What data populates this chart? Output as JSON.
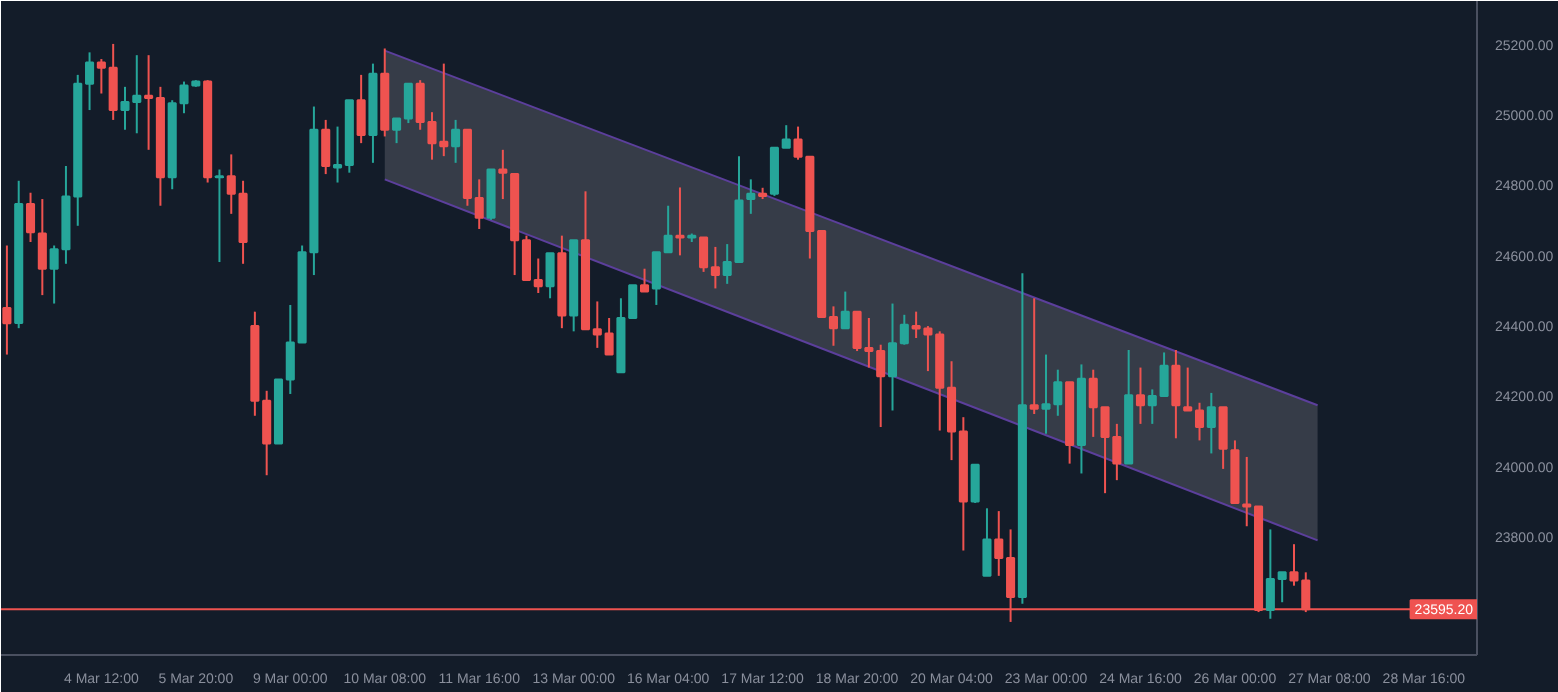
{
  "chart_data": {
    "type": "candlestick",
    "categories": [
      null,
      null,
      null,
      null,
      null,
      null,
      null,
      null,
      "4 Mar 12:00",
      null,
      null,
      null,
      null,
      null,
      null,
      null,
      "5 Mar 20:00",
      null,
      null,
      null,
      null,
      null,
      null,
      null,
      "9 Mar 00:00",
      null,
      null,
      null,
      null,
      null,
      null,
      null,
      "10 Mar 08:00",
      null,
      null,
      null,
      null,
      null,
      null,
      null,
      "11 Mar 16:00",
      null,
      null,
      null,
      null,
      null,
      null,
      null,
      "13 Mar 00:00",
      null,
      null,
      null,
      null,
      null,
      null,
      null,
      "16 Mar 04:00",
      null,
      null,
      null,
      null,
      null,
      null,
      null,
      "17 Mar 12:00",
      null,
      null,
      null,
      null,
      null,
      null,
      null,
      "18 Mar 20:00",
      null,
      null,
      null,
      null,
      null,
      null,
      null,
      "20 Mar 04:00",
      null,
      null,
      null,
      null,
      null,
      null,
      null,
      "23 Mar 00:00",
      null,
      null,
      null,
      null,
      null,
      null,
      null,
      "24 Mar 16:00",
      null,
      null,
      null,
      null,
      null,
      null,
      null,
      "26 Mar 00:00",
      null,
      null,
      null,
      null,
      null,
      null,
      null,
      "27 Mar 08:00",
      null,
      null,
      null,
      null,
      null,
      null,
      null,
      "28 Mar 16:00",
      null,
      null,
      null,
      null
    ],
    "ohlc": [
      [
        24451,
        24629,
        24319,
        24408
      ],
      [
        24409,
        24813,
        24394,
        24747
      ],
      [
        24747,
        24779,
        24639,
        24667
      ],
      [
        24663,
        24761,
        24488,
        24563
      ],
      [
        24563,
        24629,
        24464,
        24618
      ],
      [
        24618,
        24855,
        24577,
        24768
      ],
      [
        24768,
        25114,
        24685,
        25089
      ],
      [
        25089,
        25178,
        25014,
        25149
      ],
      [
        25149,
        25159,
        25061,
        25134
      ],
      [
        25134,
        25202,
        24986,
        25014
      ],
      [
        25014,
        25080,
        24958,
        25037
      ],
      [
        25037,
        25170,
        24948,
        25055
      ],
      [
        25055,
        25170,
        24901,
        25048
      ],
      [
        25048,
        25080,
        24742,
        24823
      ],
      [
        24823,
        25042,
        24789,
        25033
      ],
      [
        25033,
        25095,
        25005,
        25084
      ],
      [
        25084,
        25099,
        25080,
        25095
      ],
      [
        25095,
        25099,
        24808,
        24823
      ],
      [
        24823,
        24845,
        24582,
        24826
      ],
      [
        24826,
        24888,
        24719,
        24776
      ],
      [
        24776,
        24813,
        24577,
        24639
      ],
      [
        24400,
        24441,
        24145,
        24188
      ],
      [
        24188,
        24216,
        23976,
        24066
      ],
      [
        24066,
        24248,
        24066,
        24248
      ],
      [
        24248,
        24460,
        24207,
        24353
      ],
      [
        24353,
        24629,
        24353,
        24610
      ],
      [
        24610,
        25024,
        24545,
        24958
      ],
      [
        24958,
        24986,
        24832,
        24855
      ],
      [
        24851,
        24967,
        24808,
        24858
      ],
      [
        24858,
        25042,
        24836,
        25042
      ],
      [
        25042,
        25114,
        24920,
        24943
      ],
      [
        24943,
        25146,
        24864,
        25117
      ],
      [
        25117,
        25189,
        24939,
        24958
      ],
      [
        24958,
        24990,
        24920,
        24990
      ],
      [
        24990,
        25089,
        24977,
        25089
      ],
      [
        25089,
        25099,
        24958,
        24980
      ],
      [
        24980,
        25008,
        24873,
        24920
      ],
      [
        24924,
        25146,
        24883,
        24911
      ],
      [
        24911,
        24986,
        24864,
        24958
      ],
      [
        24958,
        24958,
        24742,
        24764
      ],
      [
        24764,
        24817,
        24676,
        24708
      ],
      [
        24708,
        24845,
        24702,
        24845
      ],
      [
        24845,
        24901,
        24761,
        24836
      ],
      [
        24832,
        24832,
        24545,
        24644
      ],
      [
        24644,
        24657,
        24531,
        24531
      ],
      [
        24531,
        24592,
        24494,
        24513
      ],
      [
        24513,
        24607,
        24479,
        24607
      ],
      [
        24607,
        24657,
        24394,
        24430
      ],
      [
        24430,
        24644,
        24385,
        24644
      ],
      [
        24644,
        24783,
        24391,
        24391
      ],
      [
        24391,
        24470,
        24338,
        24376
      ],
      [
        24379,
        24423,
        24319,
        24319
      ],
      [
        24269,
        24479,
        24269,
        24423
      ],
      [
        24423,
        24516,
        24423,
        24516
      ],
      [
        24516,
        24563,
        24498,
        24498
      ],
      [
        24507,
        24610,
        24460,
        24610
      ],
      [
        24610,
        24742,
        24610,
        24657
      ],
      [
        24657,
        24794,
        24601,
        24652
      ],
      [
        24652,
        24663,
        24639,
        24657
      ],
      [
        24652,
        24652,
        24554,
        24567
      ],
      [
        24567,
        24625,
        24507,
        24545
      ],
      [
        24545,
        24633,
        24520,
        24582
      ],
      [
        24582,
        24883,
        24582,
        24757
      ],
      [
        24761,
        24817,
        24719,
        24776
      ],
      [
        24776,
        24793,
        24761,
        24770
      ],
      [
        24776,
        24907,
        24770,
        24907
      ],
      [
        24907,
        24971,
        24907,
        24930
      ],
      [
        24930,
        24967,
        24873,
        24881
      ],
      [
        24881,
        24881,
        24592,
        24670
      ],
      [
        24670,
        24670,
        24426,
        24426
      ],
      [
        24426,
        24456,
        24344,
        24394
      ],
      [
        24394,
        24498,
        24394,
        24441
      ],
      [
        24441,
        24441,
        24329,
        24338
      ],
      [
        24338,
        24423,
        24282,
        24329
      ],
      [
        24329,
        24347,
        24113,
        24257
      ],
      [
        24257,
        24464,
        24160,
        24351
      ],
      [
        24351,
        24432,
        24347,
        24404
      ],
      [
        24400,
        24441,
        24366,
        24393
      ],
      [
        24393,
        24400,
        24272,
        24376
      ],
      [
        24376,
        24385,
        24103,
        24225
      ],
      [
        24225,
        24300,
        24019,
        24100
      ],
      [
        24100,
        24141,
        23762,
        23901
      ],
      [
        23901,
        24006,
        23897,
        24006
      ],
      [
        23690,
        23882,
        23690,
        23793
      ],
      [
        23793,
        23874,
        23690,
        23741
      ],
      [
        23741,
        23822,
        23559,
        23630
      ],
      [
        23630,
        24550,
        23611,
        24175
      ],
      [
        24175,
        24479,
        24150,
        24165
      ],
      [
        24165,
        24319,
        24094,
        24178
      ],
      [
        24178,
        24276,
        24145,
        24240
      ],
      [
        24240,
        24240,
        24009,
        24062
      ],
      [
        24062,
        24291,
        23981,
        24250
      ],
      [
        24250,
        24276,
        24085,
        24169
      ],
      [
        24169,
        24169,
        23925,
        24085
      ],
      [
        24085,
        24122,
        23962,
        24009
      ],
      [
        24009,
        24332,
        24009,
        24203
      ],
      [
        24203,
        24282,
        24122,
        24175
      ],
      [
        24175,
        24220,
        24122,
        24201
      ],
      [
        24201,
        24325,
        24201,
        24287
      ],
      [
        24287,
        24332,
        24081,
        24175
      ],
      [
        24169,
        24282,
        24160,
        24160
      ],
      [
        24160,
        24182,
        24075,
        24113
      ],
      [
        24113,
        24210,
        24038,
        24169
      ],
      [
        24169,
        24169,
        23994,
        24051
      ],
      [
        24047,
        24075,
        23897,
        23897
      ],
      [
        23893,
        24028,
        23831,
        23887
      ],
      [
        23887,
        23887,
        23587,
        23593
      ],
      [
        23593,
        23822,
        23568,
        23681
      ],
      [
        23681,
        23700,
        23615,
        23700
      ],
      [
        23700,
        23780,
        23662,
        23677
      ],
      [
        23677,
        23700,
        23587,
        23595.2
      ],
      null,
      null,
      null,
      null,
      null,
      null,
      null,
      null,
      null,
      null,
      null,
      null,
      null,
      null
    ],
    "colors": [
      "#ef5350",
      "#26a69a",
      "#ef5350",
      "#ef5350",
      "#26a69a",
      "#26a69a",
      "#26a69a",
      "#26a69a",
      "#ef5350",
      "#ef5350",
      "#26a69a",
      "#26a69a",
      "#ef5350",
      "#ef5350",
      "#26a69a",
      "#26a69a",
      "#26a69a",
      "#ef5350",
      "#26a69a",
      "#ef5350",
      "#ef5350",
      "#ef5350",
      "#ef5350",
      "#26a69a",
      "#26a69a",
      "#26a69a",
      "#26a69a",
      "#ef5350",
      "#26a69a",
      "#26a69a",
      "#ef5350",
      "#26a69a",
      "#ef5350",
      "#26a69a",
      "#26a69a",
      "#ef5350",
      "#ef5350",
      "#ef5350",
      "#26a69a",
      "#ef5350",
      "#ef5350",
      "#26a69a",
      "#ef5350",
      "#ef5350",
      "#ef5350",
      "#ef5350",
      "#26a69a",
      "#ef5350",
      "#26a69a",
      "#ef5350",
      "#ef5350",
      "#ef5350",
      "#26a69a",
      "#26a69a",
      "#ef5350",
      "#26a69a",
      "#26a69a",
      "#ef5350",
      "#26a69a",
      "#ef5350",
      "#ef5350",
      "#26a69a",
      "#26a69a",
      "#26a69a",
      "#ef5350",
      "#26a69a",
      "#26a69a",
      "#ef5350",
      "#ef5350",
      "#ef5350",
      "#ef5350",
      "#26a69a",
      "#ef5350",
      "#ef5350",
      "#ef5350",
      "#26a69a",
      "#26a69a",
      "#ef5350",
      "#ef5350",
      "#ef5350",
      "#ef5350",
      "#ef5350",
      "#26a69a",
      "#26a69a",
      "#ef5350",
      "#ef5350",
      "#26a69a",
      "#ef5350",
      "#26a69a",
      "#26a69a",
      "#ef5350",
      "#26a69a",
      "#ef5350",
      "#ef5350",
      "#ef5350",
      "#26a69a",
      "#ef5350",
      "#26a69a",
      "#26a69a",
      "#ef5350",
      "#ef5350",
      "#ef5350",
      "#26a69a",
      "#ef5350",
      "#ef5350",
      "#ef5350",
      "#ef5350",
      "#26a69a",
      "#26a69a",
      "#ef5350",
      "#ef5350",
      null,
      null,
      null,
      null,
      null,
      null,
      null,
      null,
      null,
      null,
      null,
      null,
      null,
      null
    ],
    "series": [
      {
        "type": "area",
        "color": "#5c3f9c",
        "values": [
          null,
          null,
          null,
          null,
          null,
          null,
          null,
          null,
          null,
          null,
          null,
          null,
          null,
          null,
          null,
          null,
          null,
          null,
          null,
          null,
          null,
          null,
          null,
          null,
          null,
          null,
          null,
          null,
          null,
          null,
          null,
          null,
          25183,
          null,
          null,
          null,
          null,
          null,
          null,
          null,
          null,
          null,
          null,
          null,
          null,
          null,
          null,
          null,
          null,
          null,
          null,
          null,
          null,
          null,
          null,
          null,
          null,
          null,
          null,
          null,
          null,
          null,
          null,
          null,
          null,
          null,
          null,
          null,
          null,
          null,
          null,
          null,
          null,
          null,
          null,
          null,
          null,
          null,
          null,
          null,
          null,
          null,
          null,
          null,
          null,
          null,
          null,
          null,
          null,
          null,
          null,
          null,
          null,
          null,
          null,
          null,
          null,
          null,
          null,
          null,
          null,
          null,
          null,
          null,
          null,
          null,
          null,
          null,
          null,
          null,
          null,
          24175,
          null,
          null,
          null,
          null,
          null,
          null,
          null,
          null,
          null,
          null,
          null,
          null,
          null
        ]
      },
      {
        "type": "line",
        "color": "#5c3f9c",
        "values": [
          null,
          null,
          null,
          null,
          null,
          null,
          null,
          null,
          null,
          null,
          null,
          null,
          null,
          null,
          null,
          null,
          null,
          null,
          null,
          null,
          null,
          null,
          null,
          null,
          null,
          null,
          null,
          null,
          null,
          null,
          null,
          null,
          24817,
          null,
          null,
          null,
          null,
          null,
          null,
          null,
          null,
          null,
          null,
          null,
          null,
          null,
          null,
          null,
          null,
          null,
          null,
          null,
          null,
          null,
          null,
          null,
          null,
          null,
          null,
          null,
          null,
          null,
          null,
          null,
          null,
          null,
          null,
          null,
          null,
          null,
          null,
          null,
          null,
          null,
          null,
          null,
          null,
          null,
          null,
          null,
          null,
          null,
          null,
          null,
          null,
          null,
          null,
          null,
          null,
          null,
          null,
          null,
          null,
          null,
          null,
          null,
          null,
          null,
          null,
          null,
          null,
          null,
          null,
          null,
          null,
          null,
          null,
          null,
          null,
          null,
          null,
          23791,
          null,
          null,
          null,
          null,
          null,
          null,
          null,
          null,
          null,
          null,
          null,
          null,
          null
        ]
      }
    ],
    "ylim": [
      23465,
      25324
    ],
    "yticks": [
      {
        "value": 23800,
        "label": "23800.00"
      },
      {
        "value": 24000,
        "label": "24000.00"
      },
      {
        "value": 24200,
        "label": "24200.00"
      },
      {
        "value": 24400,
        "label": "24400.00"
      },
      {
        "value": 24600,
        "label": "24600.00"
      },
      {
        "value": 24800,
        "label": "24800.00"
      },
      {
        "value": 25000,
        "label": "25000.00"
      },
      {
        "value": 25200,
        "label": "25200.00"
      }
    ],
    "ref_lines": [
      {
        "axis": "y",
        "value": 23595.2,
        "label": "23595.20",
        "color": "#ef5350"
      }
    ],
    "grid": false
  }
}
